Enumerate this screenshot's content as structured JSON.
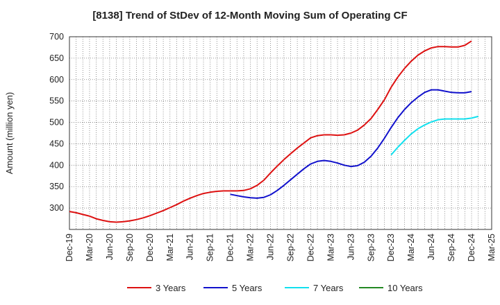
{
  "chart_data": {
    "type": "line",
    "title": "[8138]  Trend of StDev of 12-Month Moving Sum of Operating CF",
    "ylabel": "Amount (million yen)",
    "xlabel": "",
    "ylim": [
      250,
      700
    ],
    "yticks": [
      300,
      350,
      400,
      450,
      500,
      550,
      600,
      650,
      700
    ],
    "xticks": [
      "Dec-19",
      "Mar-20",
      "Jun-20",
      "Sep-20",
      "Dec-20",
      "Mar-21",
      "Jun-21",
      "Sep-21",
      "Dec-21",
      "Mar-22",
      "Jun-22",
      "Sep-22",
      "Dec-22",
      "Mar-23",
      "Jun-23",
      "Sep-23",
      "Dec-23",
      "Mar-24",
      "Jun-24",
      "Sep-24",
      "Dec-24",
      "Mar-25"
    ],
    "grid": true,
    "legend_position": "bottom",
    "series": [
      {
        "name": "3 Years",
        "color": "#dd1111",
        "points": [
          [
            "Dec-19",
            292
          ],
          [
            "Jan-20",
            289
          ],
          [
            "Feb-20",
            285
          ],
          [
            "Mar-20",
            281
          ],
          [
            "Apr-20",
            275
          ],
          [
            "May-20",
            271
          ],
          [
            "Jun-20",
            268
          ],
          [
            "Jul-20",
            267
          ],
          [
            "Aug-20",
            268
          ],
          [
            "Sep-20",
            270
          ],
          [
            "Oct-20",
            273
          ],
          [
            "Nov-20",
            277
          ],
          [
            "Dec-20",
            282
          ],
          [
            "Jan-21",
            288
          ],
          [
            "Feb-21",
            294
          ],
          [
            "Mar-21",
            301
          ],
          [
            "Apr-21",
            308
          ],
          [
            "May-21",
            316
          ],
          [
            "Jun-21",
            323
          ],
          [
            "Jul-21",
            329
          ],
          [
            "Aug-21",
            334
          ],
          [
            "Sep-21",
            337
          ],
          [
            "Oct-21",
            339
          ],
          [
            "Nov-21",
            340
          ],
          [
            "Dec-21",
            340
          ],
          [
            "Jan-22",
            340
          ],
          [
            "Feb-22",
            341
          ],
          [
            "Mar-22",
            345
          ],
          [
            "Apr-22",
            353
          ],
          [
            "May-22",
            365
          ],
          [
            "Jun-22",
            382
          ],
          [
            "Jul-22",
            398
          ],
          [
            "Aug-22",
            413
          ],
          [
            "Sep-22",
            427
          ],
          [
            "Oct-22",
            440
          ],
          [
            "Nov-22",
            452
          ],
          [
            "Dec-22",
            464
          ],
          [
            "Jan-23",
            469
          ],
          [
            "Feb-23",
            471
          ],
          [
            "Mar-23",
            471
          ],
          [
            "Apr-23",
            470
          ],
          [
            "May-23",
            471
          ],
          [
            "Jun-23",
            475
          ],
          [
            "Jul-23",
            482
          ],
          [
            "Aug-23",
            494
          ],
          [
            "Sep-23",
            509
          ],
          [
            "Oct-23",
            530
          ],
          [
            "Nov-23",
            553
          ],
          [
            "Dec-23",
            582
          ],
          [
            "Jan-24",
            606
          ],
          [
            "Feb-24",
            626
          ],
          [
            "Mar-24",
            643
          ],
          [
            "Apr-24",
            657
          ],
          [
            "May-24",
            667
          ],
          [
            "Jun-24",
            674
          ],
          [
            "Jul-24",
            677
          ],
          [
            "Aug-24",
            677
          ],
          [
            "Sep-24",
            676
          ],
          [
            "Oct-24",
            676
          ],
          [
            "Nov-24",
            680
          ],
          [
            "Dec-24",
            690
          ]
        ]
      },
      {
        "name": "5 Years",
        "color": "#1111cc",
        "points": [
          [
            "Dec-21",
            332
          ],
          [
            "Jan-22",
            329
          ],
          [
            "Feb-22",
            326
          ],
          [
            "Mar-22",
            324
          ],
          [
            "Apr-22",
            323
          ],
          [
            "May-22",
            325
          ],
          [
            "Jun-22",
            331
          ],
          [
            "Jul-22",
            341
          ],
          [
            "Aug-22",
            353
          ],
          [
            "Sep-22",
            366
          ],
          [
            "Oct-22",
            379
          ],
          [
            "Nov-22",
            392
          ],
          [
            "Dec-22",
            403
          ],
          [
            "Jan-23",
            409
          ],
          [
            "Feb-23",
            411
          ],
          [
            "Mar-23",
            409
          ],
          [
            "Apr-23",
            405
          ],
          [
            "May-23",
            400
          ],
          [
            "Jun-23",
            397
          ],
          [
            "Jul-23",
            399
          ],
          [
            "Aug-23",
            407
          ],
          [
            "Sep-23",
            421
          ],
          [
            "Oct-23",
            440
          ],
          [
            "Nov-23",
            463
          ],
          [
            "Dec-23",
            488
          ],
          [
            "Jan-24",
            511
          ],
          [
            "Feb-24",
            530
          ],
          [
            "Mar-24",
            546
          ],
          [
            "Apr-24",
            559
          ],
          [
            "May-24",
            570
          ],
          [
            "Jun-24",
            576
          ],
          [
            "Jul-24",
            576
          ],
          [
            "Aug-24",
            573
          ],
          [
            "Sep-24",
            570
          ],
          [
            "Oct-24",
            569
          ],
          [
            "Nov-24",
            569
          ],
          [
            "Dec-24",
            572
          ]
        ]
      },
      {
        "name": "7 Years",
        "color": "#11e0ee",
        "points": [
          [
            "Dec-23",
            424
          ],
          [
            "Jan-24",
            442
          ],
          [
            "Feb-24",
            458
          ],
          [
            "Mar-24",
            473
          ],
          [
            "Apr-24",
            485
          ],
          [
            "May-24",
            494
          ],
          [
            "Jun-24",
            501
          ],
          [
            "Jul-24",
            506
          ],
          [
            "Aug-24",
            508
          ],
          [
            "Sep-24",
            508
          ],
          [
            "Oct-24",
            508
          ],
          [
            "Nov-24",
            508
          ],
          [
            "Dec-24",
            510
          ],
          [
            "Jan-25",
            514
          ]
        ]
      },
      {
        "name": "10 Years",
        "color": "#228822",
        "points": []
      }
    ]
  }
}
